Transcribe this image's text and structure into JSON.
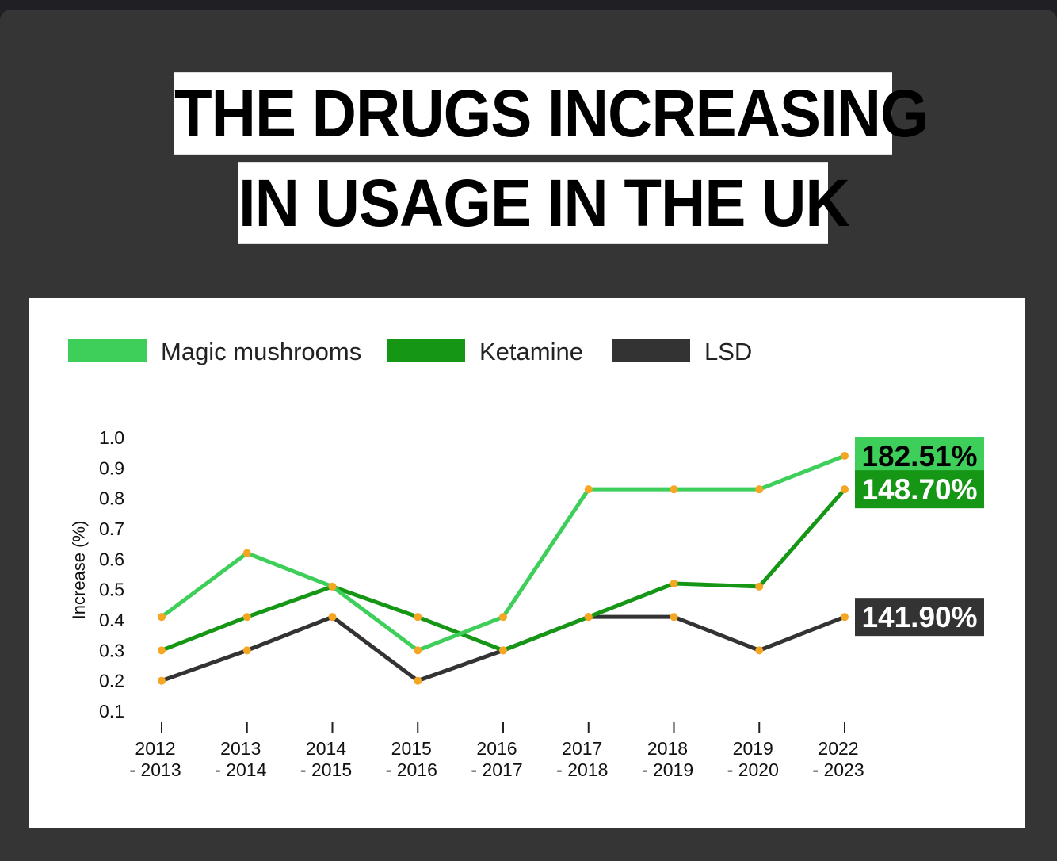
{
  "title_lines": [
    "THE DRUGS INCREASING",
    "IN USAGE IN THE UK"
  ],
  "colors": {
    "background": "#353535",
    "panel": "#ffffff",
    "point": "#f5a623"
  },
  "chart_data": {
    "type": "line",
    "title": "THE DRUGS INCREASING IN USAGE IN THE UK",
    "ylabel": "Increase (%)",
    "xlabel": "",
    "ylim": [
      0.1,
      1.0
    ],
    "yticks": [
      "1.0",
      "0.9",
      "0.8",
      "0.7",
      "0.6",
      "0.5",
      "0.4",
      "0.3",
      "0.2",
      "0.1"
    ],
    "grid": false,
    "legend_position": "top-left",
    "categories": [
      [
        "2012",
        "- 2013"
      ],
      [
        "2013",
        "- 2014"
      ],
      [
        "2014",
        "- 2015"
      ],
      [
        "2015",
        "- 2016"
      ],
      [
        "2016",
        "- 2017"
      ],
      [
        "2017",
        "- 2018"
      ],
      [
        "2018",
        "- 2019"
      ],
      [
        "2019",
        "- 2020"
      ],
      [
        "2022",
        "- 2023"
      ]
    ],
    "series": [
      {
        "name": "Magic mushrooms",
        "color": "#3ecf5a",
        "values": [
          0.41,
          0.62,
          0.51,
          0.3,
          0.41,
          0.83,
          0.83,
          0.83,
          0.94
        ],
        "end_label": "182.51%",
        "end_label_text_color": "#000000"
      },
      {
        "name": "Ketamine",
        "color": "#159615",
        "values": [
          0.3,
          0.41,
          0.51,
          0.41,
          0.3,
          0.41,
          0.52,
          0.51,
          0.83
        ],
        "end_label": "148.70%",
        "end_label_text_color": "#ffffff"
      },
      {
        "name": "LSD",
        "color": "#333333",
        "values": [
          0.2,
          0.3,
          0.41,
          0.2,
          0.3,
          0.41,
          0.41,
          0.3,
          0.41
        ],
        "end_label": "141.90%",
        "end_label_text_color": "#ffffff"
      }
    ]
  }
}
